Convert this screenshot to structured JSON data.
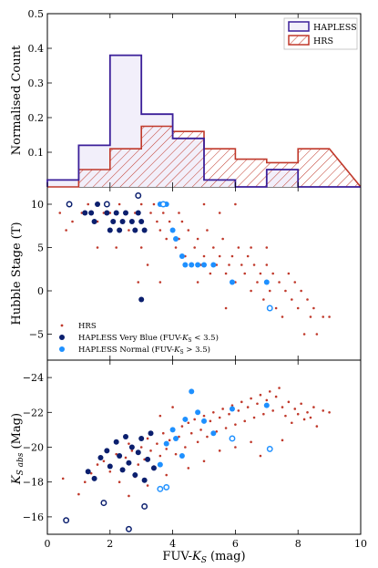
{
  "colors": {
    "hrs": "#c0392b",
    "hapless": "#3b1f99",
    "very_blue": "#0b1f6e",
    "normal": "#1e90ff",
    "hapless_fill": "#f2effa"
  },
  "chart_data": [
    {
      "type": "histogram",
      "ylabel": "Normalised Count",
      "xlim": [
        0,
        10
      ],
      "ylim": [
        0,
        0.5
      ],
      "yticks": [
        "0.1",
        "0.2",
        "0.3",
        "0.4",
        "0.5"
      ],
      "bin_edges": [
        0,
        1,
        2,
        3,
        4,
        5,
        6,
        7,
        8,
        9
      ],
      "series": [
        {
          "name": "HAPLESS",
          "values": [
            0.02,
            0.12,
            0.38,
            0.21,
            0.14,
            0.02,
            0.0,
            0.05,
            0.0
          ]
        },
        {
          "name": "HRS",
          "values": [
            0.0,
            0.05,
            0.11,
            0.175,
            0.16,
            0.11,
            0.08,
            0.07,
            0.11
          ]
        }
      ],
      "legend": "top-right"
    },
    {
      "type": "scatter",
      "ylabel": "Hubble Stage (T)",
      "xlim": [
        0,
        10
      ],
      "ylim": [
        -8,
        12
      ],
      "yticks": [
        "−5",
        "0",
        "5",
        "10"
      ],
      "series": [
        {
          "name": "HRS",
          "points": [
            [
              0.4,
              9
            ],
            [
              0.6,
              7
            ],
            [
              0.8,
              8
            ],
            [
              1.1,
              9
            ],
            [
              1.3,
              10
            ],
            [
              1.6,
              8
            ],
            [
              1.8,
              9
            ],
            [
              2.0,
              9
            ],
            [
              2.3,
              10
            ],
            [
              2.5,
              9
            ],
            [
              2.6,
              7
            ],
            [
              2.8,
              9
            ],
            [
              3.0,
              8
            ],
            [
              3.0,
              10
            ],
            [
              3.1,
              7
            ],
            [
              3.3,
              9
            ],
            [
              3.4,
              10
            ],
            [
              3.5,
              8
            ],
            [
              3.6,
              7
            ],
            [
              3.7,
              9
            ],
            [
              3.8,
              6
            ],
            [
              3.9,
              8
            ],
            [
              4.0,
              7
            ],
            [
              4.1,
              5
            ],
            [
              4.2,
              6
            ],
            [
              4.3,
              8
            ],
            [
              4.4,
              4
            ],
            [
              4.5,
              7
            ],
            [
              4.6,
              3
            ],
            [
              4.7,
              5
            ],
            [
              4.8,
              6
            ],
            [
              4.9,
              3
            ],
            [
              5.0,
              4
            ],
            [
              5.1,
              7
            ],
            [
              5.2,
              2
            ],
            [
              5.3,
              5
            ],
            [
              5.4,
              3
            ],
            [
              5.5,
              4
            ],
            [
              5.6,
              6
            ],
            [
              5.7,
              2
            ],
            [
              5.8,
              3
            ],
            [
              5.9,
              4
            ],
            [
              6.0,
              1
            ],
            [
              6.1,
              5
            ],
            [
              6.2,
              3
            ],
            [
              6.3,
              2
            ],
            [
              6.4,
              4
            ],
            [
              6.5,
              0
            ],
            [
              6.6,
              3
            ],
            [
              6.7,
              1
            ],
            [
              6.8,
              2
            ],
            [
              6.9,
              -1
            ],
            [
              7.0,
              3
            ],
            [
              7.1,
              0
            ],
            [
              7.2,
              2
            ],
            [
              7.3,
              -2
            ],
            [
              7.4,
              1
            ],
            [
              7.5,
              -3
            ],
            [
              7.6,
              0
            ],
            [
              7.7,
              2
            ],
            [
              7.8,
              -1
            ],
            [
              7.9,
              1
            ],
            [
              8.0,
              -2
            ],
            [
              8.1,
              0
            ],
            [
              8.2,
              -5
            ],
            [
              8.3,
              -1
            ],
            [
              8.4,
              -3
            ],
            [
              8.5,
              -2
            ],
            [
              8.6,
              -5
            ],
            [
              8.8,
              -3
            ],
            [
              9.0,
              -3
            ],
            [
              5.0,
              10
            ],
            [
              6.0,
              10
            ],
            [
              5.5,
              9
            ],
            [
              4.2,
              9
            ],
            [
              3.0,
              5
            ],
            [
              3.2,
              3
            ],
            [
              2.9,
              1
            ],
            [
              6.5,
              5
            ],
            [
              7.0,
              5
            ],
            [
              4.8,
              1
            ],
            [
              5.7,
              -2
            ],
            [
              3.6,
              1
            ],
            [
              2.2,
              5
            ],
            [
              1.6,
              5
            ]
          ]
        },
        {
          "name": "HAPLESS Very Blue (FUV-K_S < 3.5)",
          "points": [
            [
              1.2,
              9
            ],
            [
              1.4,
              9
            ],
            [
              1.5,
              8
            ],
            [
              1.6,
              10
            ],
            [
              1.9,
              9
            ],
            [
              2.0,
              7
            ],
            [
              2.1,
              8
            ],
            [
              2.2,
              9
            ],
            [
              2.3,
              7
            ],
            [
              2.4,
              8
            ],
            [
              2.5,
              9
            ],
            [
              2.7,
              8
            ],
            [
              2.8,
              7
            ],
            [
              2.9,
              9
            ],
            [
              3.0,
              8
            ],
            [
              3.1,
              7
            ],
            [
              3.0,
              -1
            ]
          ],
          "open": [
            [
              0.7,
              10
            ],
            [
              1.9,
              10
            ],
            [
              2.9,
              11
            ]
          ]
        },
        {
          "name": "HAPLESS Normal (FUV-K_S > 3.5)",
          "points": [
            [
              3.6,
              10
            ],
            [
              3.8,
              10
            ],
            [
              4.0,
              7
            ],
            [
              4.1,
              6
            ],
            [
              4.3,
              4
            ],
            [
              4.4,
              3
            ],
            [
              4.6,
              3
            ],
            [
              4.8,
              3
            ],
            [
              5.0,
              3
            ],
            [
              5.3,
              3
            ],
            [
              5.9,
              1
            ],
            [
              7.0,
              1
            ]
          ],
          "open": [
            [
              3.7,
              10
            ],
            [
              7.1,
              -2
            ]
          ]
        }
      ],
      "legend": "lower-left"
    },
    {
      "type": "scatter",
      "ylabel": "K_S abs (Mag)",
      "xlabel": "FUV-K_S (mag)",
      "xlim": [
        0,
        10
      ],
      "ylim": [
        -15,
        -25
      ],
      "xticks": [
        "0",
        "2",
        "4",
        "6",
        "8",
        "10"
      ],
      "yticks": [
        "−16",
        "−18",
        "−20",
        "−22",
        "−24"
      ],
      "series": [
        {
          "name": "HRS",
          "points": [
            [
              0.5,
              -18.2
            ],
            [
              1.0,
              -17.3
            ],
            [
              1.2,
              -18.0
            ],
            [
              1.4,
              -18.5
            ],
            [
              1.6,
              -19.0
            ],
            [
              1.8,
              -19.2
            ],
            [
              2.0,
              -18.6
            ],
            [
              2.2,
              -19.6
            ],
            [
              2.3,
              -18.0
            ],
            [
              2.5,
              -19.4
            ],
            [
              2.6,
              -20.2
            ],
            [
              2.7,
              -19.8
            ],
            [
              2.8,
              -18.3
            ],
            [
              2.9,
              -19.0
            ],
            [
              3.0,
              -20.0
            ],
            [
              3.1,
              -19.3
            ],
            [
              3.2,
              -20.5
            ],
            [
              3.3,
              -19.8
            ],
            [
              3.4,
              -18.9
            ],
            [
              3.5,
              -20.2
            ],
            [
              3.6,
              -19.5
            ],
            [
              3.7,
              -20.8
            ],
            [
              3.8,
              -19.9
            ],
            [
              3.9,
              -20.4
            ],
            [
              4.0,
              -21.0
            ],
            [
              4.1,
              -19.6
            ],
            [
              4.2,
              -20.6
            ],
            [
              4.3,
              -21.2
            ],
            [
              4.4,
              -20.0
            ],
            [
              4.5,
              -21.4
            ],
            [
              4.6,
              -20.8
            ],
            [
              4.7,
              -21.6
            ],
            [
              4.8,
              -20.3
            ],
            [
              4.9,
              -21.0
            ],
            [
              5.0,
              -21.8
            ],
            [
              5.1,
              -20.6
            ],
            [
              5.2,
              -21.5
            ],
            [
              5.3,
              -22.0
            ],
            [
              5.4,
              -20.9
            ],
            [
              5.5,
              -21.7
            ],
            [
              5.6,
              -22.2
            ],
            [
              5.7,
              -21.1
            ],
            [
              5.8,
              -21.9
            ],
            [
              5.9,
              -22.4
            ],
            [
              6.0,
              -21.3
            ],
            [
              6.1,
              -22.1
            ],
            [
              6.2,
              -22.6
            ],
            [
              6.3,
              -21.5
            ],
            [
              6.4,
              -22.3
            ],
            [
              6.5,
              -22.8
            ],
            [
              6.6,
              -21.7
            ],
            [
              6.7,
              -22.5
            ],
            [
              6.8,
              -23.0
            ],
            [
              6.9,
              -21.9
            ],
            [
              7.0,
              -22.7
            ],
            [
              7.1,
              -23.2
            ],
            [
              7.2,
              -22.1
            ],
            [
              7.3,
              -22.9
            ],
            [
              7.4,
              -23.4
            ],
            [
              7.5,
              -22.3
            ],
            [
              7.6,
              -21.8
            ],
            [
              7.7,
              -22.6
            ],
            [
              7.8,
              -21.4
            ],
            [
              7.9,
              -22.2
            ],
            [
              8.0,
              -21.9
            ],
            [
              8.1,
              -22.5
            ],
            [
              8.2,
              -21.6
            ],
            [
              8.3,
              -22.0
            ],
            [
              8.4,
              -21.7
            ],
            [
              8.5,
              -22.3
            ],
            [
              8.6,
              -21.2
            ],
            [
              8.8,
              -22.1
            ],
            [
              9.0,
              -22.0
            ],
            [
              5.0,
              -19.2
            ],
            [
              5.5,
              -19.8
            ],
            [
              6.0,
              -20.0
            ],
            [
              6.5,
              -20.3
            ],
            [
              4.5,
              -18.8
            ],
            [
              3.8,
              -18.4
            ],
            [
              3.2,
              -17.8
            ],
            [
              2.6,
              -17.2
            ],
            [
              4.0,
              -22.3
            ],
            [
              3.6,
              -21.8
            ],
            [
              6.8,
              -19.5
            ],
            [
              7.5,
              -20.4
            ]
          ]
        },
        {
          "name": "HAPLESS Very Blue (FUV-K_S < 3.5)",
          "points": [
            [
              1.3,
              -18.6
            ],
            [
              1.5,
              -18.2
            ],
            [
              1.7,
              -19.4
            ],
            [
              1.9,
              -19.8
            ],
            [
              2.0,
              -18.9
            ],
            [
              2.2,
              -20.3
            ],
            [
              2.3,
              -19.5
            ],
            [
              2.4,
              -18.7
            ],
            [
              2.5,
              -20.6
            ],
            [
              2.6,
              -19.1
            ],
            [
              2.7,
              -20.0
            ],
            [
              2.8,
              -18.4
            ],
            [
              2.9,
              -19.7
            ],
            [
              3.0,
              -20.5
            ],
            [
              3.1,
              -18.1
            ],
            [
              3.2,
              -19.3
            ],
            [
              3.3,
              -20.8
            ],
            [
              3.4,
              -18.8
            ]
          ],
          "open": [
            [
              0.6,
              -15.8
            ],
            [
              1.8,
              -16.8
            ],
            [
              2.6,
              -15.3
            ],
            [
              3.1,
              -16.6
            ]
          ]
        },
        {
          "name": "HAPLESS Normal (FUV-K_S > 3.5)",
          "points": [
            [
              3.6,
              -19.0
            ],
            [
              3.8,
              -20.2
            ],
            [
              4.0,
              -21.0
            ],
            [
              4.1,
              -20.5
            ],
            [
              4.3,
              -19.5
            ],
            [
              4.4,
              -21.6
            ],
            [
              4.6,
              -23.2
            ],
            [
              4.8,
              -22.0
            ],
            [
              5.0,
              -21.5
            ],
            [
              5.3,
              -20.8
            ],
            [
              5.9,
              -22.2
            ],
            [
              7.0,
              -22.4
            ]
          ],
          "open": [
            [
              3.6,
              -17.6
            ],
            [
              3.8,
              -17.7
            ],
            [
              5.9,
              -20.5
            ],
            [
              7.1,
              -19.9
            ]
          ]
        }
      ]
    }
  ],
  "panel1": {
    "ylabel": "Normalised Count",
    "legend": [
      "HAPLESS",
      "HRS"
    ]
  },
  "panel2": {
    "ylabel": "Hubble Stage (T)",
    "legend_hrs": "HRS",
    "legend_vb": "HAPLESS Very Blue (FUV-",
    "legend_vb_sub": "K",
    "legend_vb_subs": "S",
    "legend_vb_tail": " < 3.5)",
    "legend_n": "HAPLESS Normal (FUV-",
    "legend_n_sub": "K",
    "legend_n_subs": "S",
    "legend_n_tail": " > 3.5)"
  },
  "panel3": {
    "ylabel_main": "K",
    "ylabel_sub": "S abs",
    "ylabel_unit": " (Mag)",
    "xlabel_main": "FUV-",
    "xlabel_k": "K",
    "xlabel_s": "S",
    "xlabel_unit": " (mag)"
  }
}
